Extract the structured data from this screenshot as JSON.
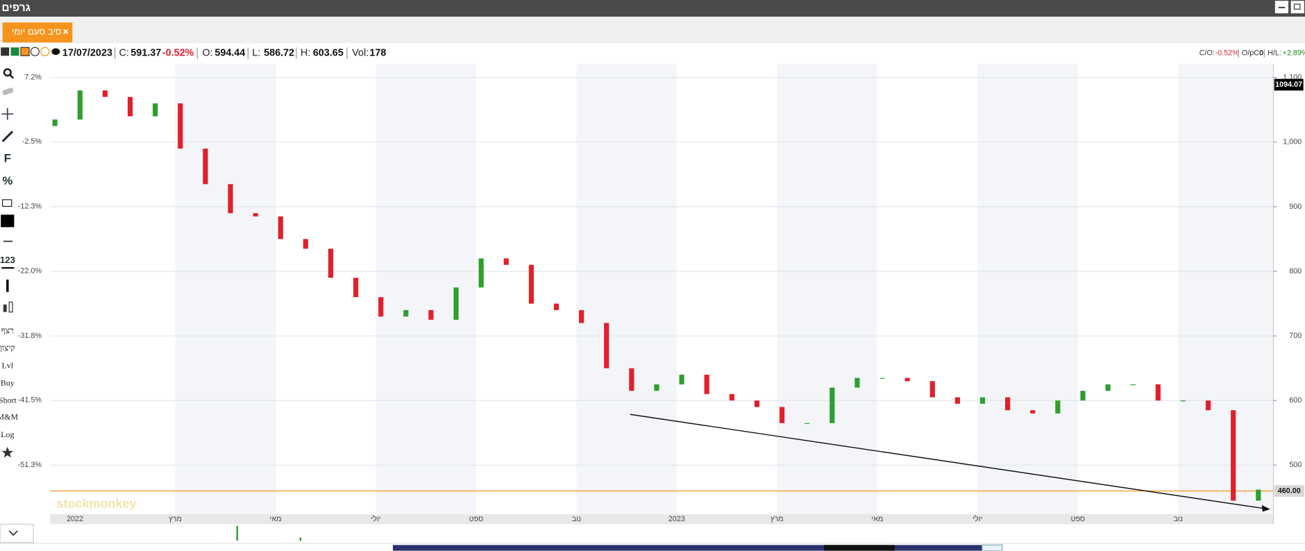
{
  "window_title": "גרפים",
  "tab": {
    "label": "סיב סעם יומי",
    "close": "×"
  },
  "quote": {
    "date": "17/07/2023",
    "close_label": "C:",
    "close": "591.37",
    "change": "-0.52%",
    "open_label": "O:",
    "open": "594.44",
    "low_label": "L:",
    "low": "586.72",
    "high_label": "H:",
    "high": "603.65",
    "vol_label": "Vol:",
    "vol": "178"
  },
  "stats": {
    "co_label": "C/O:",
    "co": "-0.52%",
    "opc_label": "O/pC:",
    "opc": "0",
    "hl_label": "H/L:",
    "hl": "+2.89%"
  },
  "toolbar": [
    "F",
    "%",
    "123",
    "רצף",
    "קיצון",
    "Lvl",
    "Buy",
    "Short",
    "M&M",
    "Log"
  ],
  "chart_data": {
    "type": "candlestick",
    "x": [
      -0.4,
      0.1,
      0.6,
      1.1,
      1.6,
      2.1,
      2.6,
      3.1,
      3.6,
      4.1,
      4.6,
      5.1,
      5.6,
      6.1,
      6.6,
      7.1,
      7.6,
      8.1,
      8.6,
      9.1,
      9.6,
      10.1,
      10.6,
      11.1,
      11.6,
      12.1,
      12.6,
      13.1,
      13.6,
      14.1,
      14.6,
      15.1,
      15.6,
      16.1,
      16.6,
      17.1,
      17.6,
      18.1,
      18.6,
      19.1,
      19.6,
      20.1,
      20.6,
      21.1,
      21.6,
      22.1,
      22.6,
      23.1,
      23.6
    ],
    "open": [
      1025,
      1035,
      1080,
      1070,
      1040,
      1060,
      990,
      935,
      890,
      885,
      850,
      835,
      790,
      760,
      730,
      740,
      725,
      775,
      820,
      810,
      750,
      740,
      720,
      650,
      615,
      625,
      640,
      610,
      600,
      590,
      565,
      565,
      620,
      635,
      635,
      630,
      605,
      595,
      605,
      585,
      580,
      600,
      615,
      625,
      625,
      600,
      600,
      585,
      445
    ],
    "close": [
      1035,
      1080,
      1070,
      1040,
      1060,
      990,
      935,
      890,
      885,
      850,
      835,
      790,
      760,
      730,
      740,
      725,
      775,
      820,
      810,
      750,
      740,
      720,
      650,
      615,
      625,
      640,
      610,
      600,
      590,
      565,
      565,
      620,
      635,
      635,
      630,
      605,
      595,
      605,
      585,
      580,
      600,
      615,
      625,
      625,
      600,
      600,
      585,
      445,
      462
    ],
    "up_color": "#2e9e2e",
    "down_color": "#e0202a",
    "xlim": [
      -0.5,
      23.9
    ],
    "xticks": [
      {
        "value": 0,
        "label": "2022"
      },
      {
        "value": 2,
        "label": "מרץ"
      },
      {
        "value": 4,
        "label": "מאי"
      },
      {
        "value": 6,
        "label": "יולי"
      },
      {
        "value": 8,
        "label": "ספט"
      },
      {
        "value": 10,
        "label": "נוב"
      },
      {
        "value": 12,
        "label": "2023"
      },
      {
        "value": 14,
        "label": "מרץ"
      },
      {
        "value": 16,
        "label": "מאי"
      },
      {
        "value": 18,
        "label": "יולי"
      },
      {
        "value": 20,
        "label": "ספט"
      },
      {
        "value": 22,
        "label": "נוב"
      }
    ],
    "ylim": [
      424,
      1117
    ],
    "yticks": [
      {
        "value": 500,
        "label": "500"
      },
      {
        "value": 600,
        "label": "600"
      },
      {
        "value": 700,
        "label": "700"
      },
      {
        "value": 800,
        "label": "800"
      },
      {
        "value": 900,
        "label": "900"
      },
      {
        "value": 1000,
        "label": "1,000"
      },
      {
        "value": 1100,
        "label": "1,100"
      }
    ],
    "y2lim": [
      -58.7,
      8.85
    ],
    "y2ticks": [
      {
        "value": 7.2,
        "label": "7.2%"
      },
      {
        "value": -2.5,
        "label": "-2.5%"
      },
      {
        "value": -12.3,
        "label": "-12.3%"
      },
      {
        "value": -22.0,
        "label": "-22.0%"
      },
      {
        "value": -31.8,
        "label": "-31.8%"
      },
      {
        "value": -41.5,
        "label": "-41.5%"
      },
      {
        "value": -51.3,
        "label": "-51.3%"
      }
    ],
    "grid": true,
    "last_value": 1094.07,
    "level": {
      "value": 460,
      "label": "460.00",
      "color": "#f7941d"
    },
    "watermark": "stockmonkey"
  }
}
